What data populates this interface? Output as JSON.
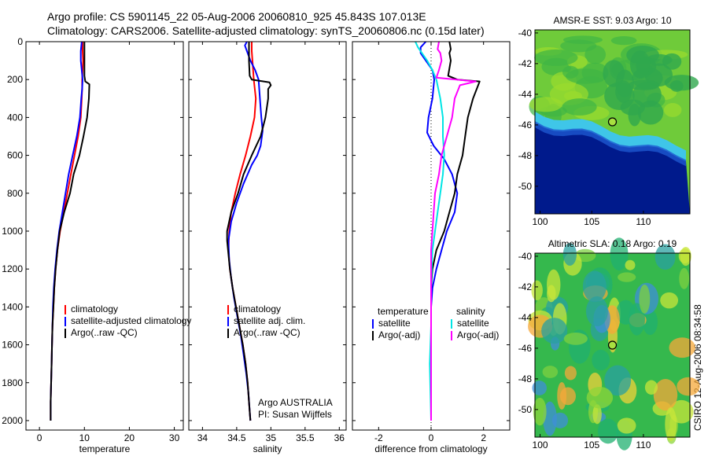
{
  "header": {
    "line1": "Argo profile: CS 5901145_22 05-Aug-2006 20060810_925 45.843S 107.013E",
    "line2": "Climatology: CARS2006. Satellite-adjusted climatology: synTS_20060806.nc (0.15d later)"
  },
  "side_text": "CSIRO 12-Aug-2006 08:34:58",
  "chart_data": [
    {
      "type": "line",
      "xlabel": "temperature",
      "ylabel": "",
      "xlim": [
        -3,
        32
      ],
      "ylim": [
        2050,
        0
      ],
      "xticks": [
        0,
        10,
        20,
        30
      ],
      "yticks": [
        0,
        200,
        400,
        600,
        800,
        1000,
        1200,
        1400,
        1600,
        1800,
        2000
      ],
      "legend": [
        "climatology",
        "satellite-adjusted climatology",
        "Argo(..raw -QC)"
      ],
      "legend_position": "lower-right",
      "series": [
        {
          "name": "climatology",
          "color": "#ff0000",
          "points": [
            [
              9.6,
              0
            ],
            [
              9.6,
              50
            ],
            [
              9.7,
              100
            ],
            [
              9.6,
              150
            ],
            [
              9.5,
              200
            ],
            [
              9.5,
              250
            ],
            [
              9.4,
              300
            ],
            [
              9.2,
              400
            ],
            [
              8.6,
              500
            ],
            [
              7.8,
              600
            ],
            [
              7.0,
              700
            ],
            [
              6.2,
              800
            ],
            [
              5.4,
              900
            ],
            [
              4.6,
              1000
            ],
            [
              4.0,
              1100
            ],
            [
              3.6,
              1200
            ],
            [
              3.3,
              1300
            ],
            [
              3.1,
              1400
            ],
            [
              2.9,
              1500
            ],
            [
              2.8,
              1600
            ],
            [
              2.7,
              1700
            ],
            [
              2.6,
              1800
            ],
            [
              2.5,
              1900
            ],
            [
              2.5,
              2000
            ]
          ]
        },
        {
          "name": "satellite-adjusted climatology",
          "color": "#0000ff",
          "points": [
            [
              9.4,
              0
            ],
            [
              9.2,
              50
            ],
            [
              9.2,
              100
            ],
            [
              9.4,
              150
            ],
            [
              9.6,
              200
            ],
            [
              9.5,
              250
            ],
            [
              9.3,
              300
            ],
            [
              9.0,
              400
            ],
            [
              8.3,
              500
            ],
            [
              7.4,
              600
            ],
            [
              6.5,
              700
            ],
            [
              5.8,
              800
            ],
            [
              5.1,
              900
            ],
            [
              4.4,
              1000
            ],
            [
              3.9,
              1100
            ],
            [
              3.5,
              1200
            ],
            [
              3.2,
              1300
            ],
            [
              3.0,
              1400
            ],
            [
              2.9,
              1500
            ],
            [
              2.8,
              1600
            ],
            [
              2.7,
              1700
            ],
            [
              2.6,
              1800
            ],
            [
              2.5,
              1900
            ],
            [
              2.5,
              2000
            ]
          ]
        },
        {
          "name": "Argo(..raw -QC)",
          "color": "#000000",
          "points": [
            [
              10.0,
              0
            ],
            [
              10.0,
              100
            ],
            [
              10.0,
              180
            ],
            [
              10.2,
              210
            ],
            [
              11.1,
              225
            ],
            [
              11.0,
              300
            ],
            [
              10.6,
              400
            ],
            [
              9.8,
              500
            ],
            [
              8.9,
              600
            ],
            [
              7.6,
              700
            ],
            [
              6.8,
              800
            ],
            [
              5.5,
              900
            ],
            [
              4.5,
              1000
            ],
            [
              4.0,
              1100
            ],
            [
              3.6,
              1200
            ],
            [
              3.3,
              1300
            ],
            [
              3.1,
              1400
            ],
            [
              2.9,
              1500
            ],
            [
              2.8,
              1600
            ],
            [
              2.7,
              1700
            ],
            [
              2.6,
              1800
            ],
            [
              2.5,
              1900
            ],
            [
              2.5,
              2000
            ]
          ]
        }
      ]
    },
    {
      "type": "line",
      "xlabel": "salinity",
      "ylabel": "",
      "xlim": [
        33.8,
        36.1
      ],
      "ylim": [
        2050,
        0
      ],
      "xticks": [
        34,
        34.5,
        35,
        35.5,
        36
      ],
      "yticks": [
        0,
        200,
        400,
        600,
        800,
        1000,
        1200,
        1400,
        1600,
        1800,
        2000
      ],
      "legend": [
        "climatology",
        "satellite adj. clim.",
        "Argo(..raw -QC)"
      ],
      "legend_position": "lower-right",
      "annotation": [
        "Argo AUSTRALIA",
        "PI: Susan Wijffels"
      ],
      "series": [
        {
          "name": "climatology",
          "color": "#ff0000",
          "points": [
            [
              34.72,
              0
            ],
            [
              34.72,
              50
            ],
            [
              34.73,
              100
            ],
            [
              34.75,
              200
            ],
            [
              34.78,
              300
            ],
            [
              34.76,
              400
            ],
            [
              34.7,
              500
            ],
            [
              34.63,
              600
            ],
            [
              34.55,
              700
            ],
            [
              34.48,
              800
            ],
            [
              34.42,
              900
            ],
            [
              34.39,
              1000
            ],
            [
              34.38,
              1100
            ],
            [
              34.4,
              1200
            ],
            [
              34.44,
              1300
            ],
            [
              34.49,
              1400
            ],
            [
              34.54,
              1500
            ],
            [
              34.59,
              1600
            ],
            [
              34.63,
              1700
            ],
            [
              34.66,
              1800
            ],
            [
              34.68,
              1900
            ],
            [
              34.7,
              2000
            ]
          ]
        },
        {
          "name": "satellite adj. clim.",
          "color": "#0000ff",
          "points": [
            [
              34.65,
              0
            ],
            [
              34.62,
              20
            ],
            [
              34.65,
              50
            ],
            [
              34.7,
              100
            ],
            [
              34.77,
              150
            ],
            [
              34.82,
              200
            ],
            [
              34.84,
              300
            ],
            [
              34.86,
              400
            ],
            [
              34.88,
              470
            ],
            [
              34.85,
              550
            ],
            [
              34.8,
              600
            ],
            [
              34.72,
              650
            ],
            [
              34.6,
              750
            ],
            [
              34.5,
              850
            ],
            [
              34.42,
              950
            ],
            [
              34.38,
              1050
            ],
            [
              34.39,
              1150
            ],
            [
              34.42,
              1250
            ],
            [
              34.46,
              1350
            ],
            [
              34.51,
              1450
            ],
            [
              34.56,
              1550
            ],
            [
              34.6,
              1650
            ],
            [
              34.64,
              1750
            ],
            [
              34.67,
              1850
            ],
            [
              34.7,
              2000
            ]
          ]
        },
        {
          "name": "Argo(..raw -QC)",
          "color": "#000000",
          "points": [
            [
              34.68,
              0
            ],
            [
              34.68,
              100
            ],
            [
              34.69,
              180
            ],
            [
              34.72,
              200
            ],
            [
              34.98,
              215
            ],
            [
              35.0,
              230
            ],
            [
              34.96,
              250
            ],
            [
              34.96,
              300
            ],
            [
              34.92,
              400
            ],
            [
              34.85,
              500
            ],
            [
              34.72,
              600
            ],
            [
              34.6,
              700
            ],
            [
              34.52,
              800
            ],
            [
              34.42,
              900
            ],
            [
              34.36,
              1000
            ],
            [
              34.36,
              1050
            ],
            [
              34.4,
              1200
            ],
            [
              34.44,
              1300
            ],
            [
              34.49,
              1400
            ],
            [
              34.54,
              1500
            ],
            [
              34.59,
              1600
            ],
            [
              34.63,
              1700
            ],
            [
              34.66,
              1800
            ],
            [
              34.68,
              1900
            ],
            [
              34.7,
              2000
            ]
          ]
        }
      ]
    },
    {
      "type": "line",
      "xlabel": "difference from climatology",
      "ylabel": "",
      "xlim": [
        -3,
        3
      ],
      "ylim": [
        2050,
        0
      ],
      "xticks": [
        -2,
        0,
        2
      ],
      "yticks": [
        0,
        200,
        400,
        600,
        800,
        1000,
        1200,
        1400,
        1600,
        1800,
        2000
      ],
      "legend_headers": [
        "temperature",
        "salinity"
      ],
      "legend": [
        "satellite",
        "Argo(-adj)",
        "satellite",
        "Argo(-adj)"
      ],
      "legend_position": "lower-right",
      "series": [
        {
          "name": "satellite",
          "color": "#0000ff",
          "points": [
            [
              -0.2,
              0
            ],
            [
              -0.4,
              30
            ],
            [
              -0.4,
              60
            ],
            [
              -0.2,
              100
            ],
            [
              0.05,
              150
            ],
            [
              0.12,
              200
            ],
            [
              0.05,
              300
            ],
            [
              -0.1,
              400
            ],
            [
              -0.15,
              480
            ],
            [
              0.1,
              550
            ],
            [
              0.5,
              620
            ],
            [
              0.8,
              700
            ],
            [
              1.0,
              800
            ],
            [
              0.9,
              900
            ],
            [
              0.6,
              1000
            ],
            [
              0.4,
              1100
            ],
            [
              0.2,
              1200
            ],
            [
              0.05,
              1300
            ],
            [
              0.0,
              1400
            ],
            [
              0.0,
              2000
            ]
          ]
        },
        {
          "name": "Argo(-adj)",
          "color": "#000000",
          "points": [
            [
              0.7,
              0
            ],
            [
              0.75,
              40
            ],
            [
              0.7,
              60
            ],
            [
              0.75,
              100
            ],
            [
              0.65,
              180
            ],
            [
              1.0,
              200
            ],
            [
              1.85,
              210
            ],
            [
              1.6,
              300
            ],
            [
              1.4,
              400
            ],
            [
              1.3,
              500
            ],
            [
              1.2,
              600
            ],
            [
              1.0,
              700
            ],
            [
              0.9,
              800
            ],
            [
              0.7,
              900
            ],
            [
              0.5,
              1000
            ],
            [
              0.2,
              1100
            ],
            [
              0.05,
              1200
            ],
            [
              0.0,
              1300
            ],
            [
              0.0,
              2000
            ]
          ]
        },
        {
          "name": "satellite",
          "color": "#00e5e5",
          "points": [
            [
              -0.6,
              0
            ],
            [
              -0.5,
              30
            ],
            [
              -0.3,
              70
            ],
            [
              -0.15,
              100
            ],
            [
              0.05,
              150
            ],
            [
              0.2,
              200
            ],
            [
              0.35,
              300
            ],
            [
              0.45,
              400
            ],
            [
              0.45,
              500
            ],
            [
              0.5,
              600
            ],
            [
              0.45,
              700
            ],
            [
              0.35,
              800
            ],
            [
              0.25,
              900
            ],
            [
              0.15,
              1000
            ],
            [
              0.05,
              1100
            ],
            [
              0.0,
              1300
            ],
            [
              0.0,
              1500
            ],
            [
              -0.05,
              1700
            ],
            [
              0.0,
              2000
            ]
          ]
        },
        {
          "name": "Argo(-adj)",
          "color": "#ff00ff",
          "points": [
            [
              0.3,
              0
            ],
            [
              0.25,
              40
            ],
            [
              0.35,
              60
            ],
            [
              0.4,
              100
            ],
            [
              0.3,
              150
            ],
            [
              0.2,
              190
            ],
            [
              1.7,
              210
            ],
            [
              1.1,
              230
            ],
            [
              0.9,
              300
            ],
            [
              0.8,
              400
            ],
            [
              0.6,
              500
            ],
            [
              0.4,
              600
            ],
            [
              0.3,
              700
            ],
            [
              0.15,
              800
            ],
            [
              0.1,
              900
            ],
            [
              0.05,
              1000
            ],
            [
              0.0,
              1100
            ],
            [
              0.0,
              2000
            ]
          ]
        }
      ]
    },
    {
      "type": "heatmap",
      "title": "AMSR-E SST: 9.03 Argo: 10",
      "xlim": [
        99.5,
        114.5
      ],
      "ylim": [
        -51.8,
        -39.8
      ],
      "xticks": [
        100,
        105,
        110
      ],
      "yticks": [
        -40,
        -42,
        -44,
        -46,
        -48,
        -50
      ],
      "marker": [
        107.0,
        -45.8
      ]
    },
    {
      "type": "heatmap",
      "title": "Altimetric SLA: 0.18 Argo: 0.19",
      "xlim": [
        99.5,
        114.5
      ],
      "ylim": [
        -51.8,
        -39.8
      ],
      "xticks": [
        100,
        105,
        110
      ],
      "yticks": [
        -40,
        -42,
        -44,
        -46,
        -48,
        -50
      ],
      "marker": [
        107.0,
        -45.8
      ]
    }
  ]
}
